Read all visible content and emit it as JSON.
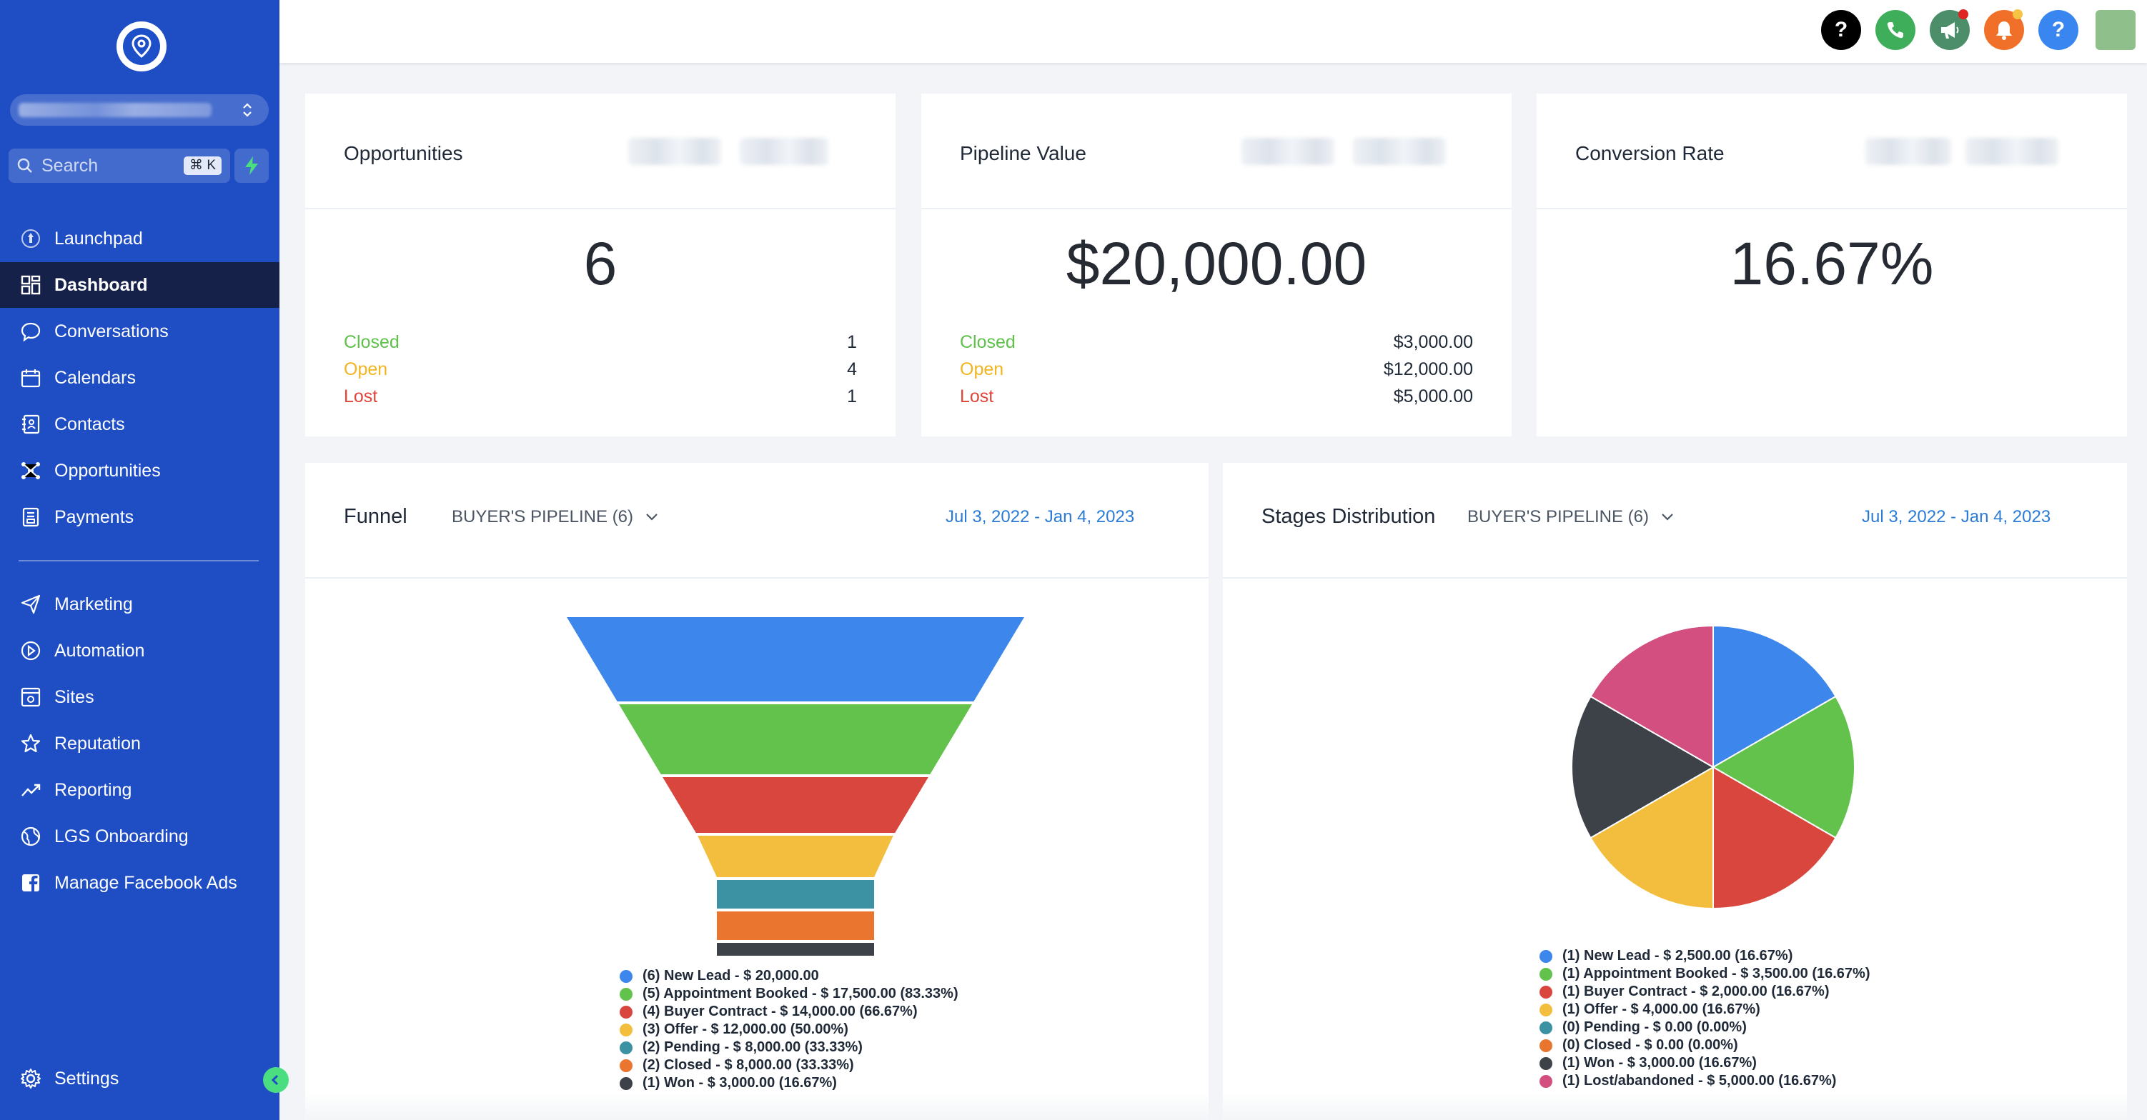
{
  "sidebar": {
    "search_placeholder": "Search",
    "shortcut": "⌘ K",
    "nav_main": [
      {
        "label": "Launchpad",
        "icon": "rocket-icon"
      },
      {
        "label": "Dashboard",
        "icon": "dashboard-icon",
        "active": true
      },
      {
        "label": "Conversations",
        "icon": "chat-icon"
      },
      {
        "label": "Calendars",
        "icon": "calendar-icon"
      },
      {
        "label": "Contacts",
        "icon": "contacts-icon"
      },
      {
        "label": "Opportunities",
        "icon": "opportunities-icon"
      },
      {
        "label": "Payments",
        "icon": "payments-icon"
      }
    ],
    "nav_secondary": [
      {
        "label": "Marketing",
        "icon": "send-icon"
      },
      {
        "label": "Automation",
        "icon": "automation-icon"
      },
      {
        "label": "Sites",
        "icon": "sites-icon"
      },
      {
        "label": "Reputation",
        "icon": "star-icon"
      },
      {
        "label": "Reporting",
        "icon": "trend-icon"
      },
      {
        "label": "LGS Onboarding",
        "icon": "globe-icon"
      },
      {
        "label": "Manage Facebook Ads",
        "icon": "facebook-icon"
      }
    ],
    "settings_label": "Settings"
  },
  "topbar": {
    "icons": [
      "help-icon",
      "phone-icon",
      "megaphone-icon",
      "bell-icon",
      "question-icon"
    ],
    "colors": {
      "help": "#000000",
      "phone": "#3fae5a",
      "megaphone": "#4c8e6a",
      "bell": "#f0702a",
      "question": "#3a86f0"
    }
  },
  "stats": {
    "opportunities": {
      "title": "Opportunities",
      "value": "6",
      "closed_label": "Closed",
      "closed_value": "1",
      "open_label": "Open",
      "open_value": "4",
      "lost_label": "Lost",
      "lost_value": "1"
    },
    "pipeline": {
      "title": "Pipeline Value",
      "value": "$20,000.00",
      "closed_label": "Closed",
      "closed_value": "$3,000.00",
      "open_label": "Open",
      "open_value": "$12,000.00",
      "lost_label": "Lost",
      "lost_value": "$5,000.00"
    },
    "conversion": {
      "title": "Conversion Rate",
      "value": "16.67%"
    }
  },
  "funnel": {
    "title": "Funnel",
    "pipeline": "BUYER'S PIPELINE (6)",
    "date_range": "Jul 3, 2022 - Jan 4, 2023"
  },
  "stages": {
    "title": "Stages Distribution",
    "pipeline": "BUYER'S PIPELINE (6)",
    "date_range": "Jul 3, 2022 - Jan 4, 2023"
  },
  "chart_data": [
    {
      "type": "funnel",
      "title": "Funnel",
      "categories": [
        "New Lead",
        "Appointment Booked",
        "Buyer Contract",
        "Offer",
        "Pending",
        "Closed",
        "Won"
      ],
      "counts": [
        6,
        5,
        4,
        3,
        2,
        2,
        1
      ],
      "values": [
        20000,
        17500,
        14000,
        12000,
        8000,
        8000,
        3000
      ],
      "colors": [
        "#3d86ec",
        "#62c24b",
        "#d9463d",
        "#f3bd3d",
        "#3c91a3",
        "#e9752f",
        "#3d4148"
      ],
      "legend": [
        "(6) New Lead - $ 20,000.00",
        "(5) Appointment Booked - $ 17,500.00 (83.33%)",
        "(4) Buyer Contract - $ 14,000.00 (66.67%)",
        "(3) Offer - $ 12,000.00 (50.00%)",
        "(2) Pending - $ 8,000.00 (33.33%)",
        "(2) Closed - $ 8,000.00 (33.33%)",
        "(1) Won - $ 3,000.00 (16.67%)"
      ]
    },
    {
      "type": "pie",
      "title": "Stages Distribution",
      "categories": [
        "New Lead",
        "Appointment Booked",
        "Buyer Contract",
        "Offer",
        "Pending",
        "Closed",
        "Won",
        "Lost/abandoned"
      ],
      "counts": [
        1,
        1,
        1,
        1,
        0,
        0,
        1,
        1
      ],
      "values": [
        2500,
        3500,
        2000,
        4000,
        0,
        0,
        3000,
        5000
      ],
      "colors": [
        "#3d86ec",
        "#62c24b",
        "#d9463d",
        "#f3bd3d",
        "#3c91a3",
        "#e9752f",
        "#3d4148",
        "#d24f80"
      ],
      "legend": [
        "(1) New Lead - $ 2,500.00 (16.67%)",
        "(1) Appointment Booked - $ 3,500.00 (16.67%)",
        "(1) Buyer Contract - $ 2,000.00 (16.67%)",
        "(1) Offer - $ 4,000.00 (16.67%)",
        "(0) Pending - $ 0.00 (0.00%)",
        "(0) Closed - $ 0.00 (0.00%)",
        "(1) Won - $ 3,000.00 (16.67%)",
        "(1) Lost/abandoned - $ 5,000.00 (16.67%)"
      ]
    }
  ]
}
